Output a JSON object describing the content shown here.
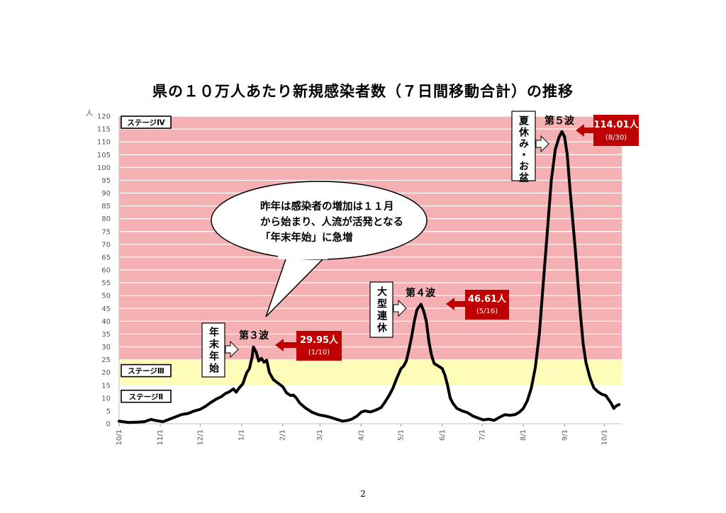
{
  "title": "県の１０万人あたり新規感染者数（７日間移動合計）の推移",
  "page_number": "2",
  "chart_data": {
    "type": "line",
    "title": "県の１０万人あたり新規感染者数（７日間移動合計）の推移",
    "xlabel": "",
    "ylabel": "人",
    "ylim": [
      0,
      120
    ],
    "ytick_step": 5,
    "x_range": [
      "2020-10-01",
      "2021-10-14"
    ],
    "x_ticks": [
      {
        "date": "2020-10-01",
        "label": "10/1"
      },
      {
        "date": "2020-11-01",
        "label": "11/1"
      },
      {
        "date": "2020-12-01",
        "label": "12/1"
      },
      {
        "date": "2021-01-01",
        "label": "1/1"
      },
      {
        "date": "2021-02-01",
        "label": "2/1"
      },
      {
        "date": "2021-03-01",
        "label": "3/1"
      },
      {
        "date": "2021-04-01",
        "label": "4/1"
      },
      {
        "date": "2021-05-01",
        "label": "5/1"
      },
      {
        "date": "2021-06-01",
        "label": "6/1"
      },
      {
        "date": "2021-07-01",
        "label": "7/1"
      },
      {
        "date": "2021-08-01",
        "label": "8/1"
      },
      {
        "date": "2021-09-01",
        "label": "9/1"
      },
      {
        "date": "2021-10-01",
        "label": "10/1"
      }
    ],
    "bands": [
      {
        "label": "ステージⅣ",
        "from": 25,
        "to": 120,
        "color": "#f4b0b2"
      },
      {
        "label": "ステージⅢ",
        "from": 15,
        "to": 25,
        "color": "#fefcb6"
      },
      {
        "label": "ステージⅡ",
        "from": 0,
        "to": 15,
        "color": "#ffffff"
      }
    ],
    "series": [
      {
        "color": "#000000",
        "points": [
          [
            "2020-10-01",
            1.0
          ],
          [
            "2020-10-08",
            0.5
          ],
          [
            "2020-10-15",
            0.6
          ],
          [
            "2020-10-20",
            0.8
          ],
          [
            "2020-10-25",
            1.7
          ],
          [
            "2020-10-29",
            1.2
          ],
          [
            "2020-11-03",
            0.8
          ],
          [
            "2020-11-07",
            1.6
          ],
          [
            "2020-11-12",
            2.6
          ],
          [
            "2020-11-17",
            3.6
          ],
          [
            "2020-11-22",
            4.0
          ],
          [
            "2020-11-26",
            4.9
          ],
          [
            "2020-12-01",
            5.6
          ],
          [
            "2020-12-05",
            6.8
          ],
          [
            "2020-12-09",
            8.3
          ],
          [
            "2020-12-13",
            9.6
          ],
          [
            "2020-12-17",
            10.6
          ],
          [
            "2020-12-20",
            11.8
          ],
          [
            "2020-12-23",
            12.5
          ],
          [
            "2020-12-26",
            13.6
          ],
          [
            "2020-12-28",
            12.3
          ],
          [
            "2020-12-30",
            13.8
          ],
          [
            "2021-01-02",
            15.5
          ],
          [
            "2021-01-05",
            20.0
          ],
          [
            "2021-01-07",
            21.5
          ],
          [
            "2021-01-09",
            26.0
          ],
          [
            "2021-01-10",
            29.95
          ],
          [
            "2021-01-12",
            28.0
          ],
          [
            "2021-01-14",
            24.5
          ],
          [
            "2021-01-16",
            25.5
          ],
          [
            "2021-01-18",
            24.0
          ],
          [
            "2021-01-20",
            24.8
          ],
          [
            "2021-01-22",
            20.0
          ],
          [
            "2021-01-25",
            17.2
          ],
          [
            "2021-01-28",
            16.0
          ],
          [
            "2021-02-01",
            14.5
          ],
          [
            "2021-02-04",
            12.0
          ],
          [
            "2021-02-07",
            11.0
          ],
          [
            "2021-02-09",
            11.2
          ],
          [
            "2021-02-11",
            10.2
          ],
          [
            "2021-02-14",
            8.0
          ],
          [
            "2021-02-18",
            6.2
          ],
          [
            "2021-02-23",
            4.5
          ],
          [
            "2021-02-28",
            3.5
          ],
          [
            "2021-03-05",
            3.0
          ],
          [
            "2021-03-09",
            2.5
          ],
          [
            "2021-03-12",
            2.0
          ],
          [
            "2021-03-15",
            1.5
          ],
          [
            "2021-03-18",
            1.0
          ],
          [
            "2021-03-22",
            1.3
          ],
          [
            "2021-03-25",
            1.8
          ],
          [
            "2021-03-29",
            3.0
          ],
          [
            "2021-04-01",
            4.5
          ],
          [
            "2021-04-04",
            5.0
          ],
          [
            "2021-04-08",
            4.6
          ],
          [
            "2021-04-12",
            5.3
          ],
          [
            "2021-04-16",
            6.3
          ],
          [
            "2021-04-19",
            8.5
          ],
          [
            "2021-04-22",
            11.0
          ],
          [
            "2021-04-25",
            14.0
          ],
          [
            "2021-04-28",
            18.0
          ],
          [
            "2021-05-01",
            21.5
          ],
          [
            "2021-05-03",
            22.5
          ],
          [
            "2021-05-05",
            24.5
          ],
          [
            "2021-05-07",
            29.0
          ],
          [
            "2021-05-09",
            34.0
          ],
          [
            "2021-05-11",
            40.0
          ],
          [
            "2021-05-13",
            44.5
          ],
          [
            "2021-05-16",
            46.61
          ],
          [
            "2021-05-18",
            44.0
          ],
          [
            "2021-05-20",
            40.0
          ],
          [
            "2021-05-22",
            32.0
          ],
          [
            "2021-05-24",
            26.5
          ],
          [
            "2021-05-26",
            23.5
          ],
          [
            "2021-05-29",
            22.5
          ],
          [
            "2021-06-01",
            21.5
          ],
          [
            "2021-06-03",
            19.0
          ],
          [
            "2021-06-05",
            15.0
          ],
          [
            "2021-06-07",
            10.0
          ],
          [
            "2021-06-09",
            8.0
          ],
          [
            "2021-06-12",
            6.0
          ],
          [
            "2021-06-16",
            5.0
          ],
          [
            "2021-06-20",
            4.3
          ],
          [
            "2021-06-24",
            3.0
          ],
          [
            "2021-06-28",
            2.2
          ],
          [
            "2021-07-02",
            1.5
          ],
          [
            "2021-07-06",
            1.8
          ],
          [
            "2021-07-10",
            1.3
          ],
          [
            "2021-07-14",
            2.5
          ],
          [
            "2021-07-18",
            3.5
          ],
          [
            "2021-07-22",
            3.3
          ],
          [
            "2021-07-26",
            3.6
          ],
          [
            "2021-07-29",
            4.5
          ],
          [
            "2021-08-01",
            6.0
          ],
          [
            "2021-08-04",
            9.0
          ],
          [
            "2021-08-07",
            14.0
          ],
          [
            "2021-08-10",
            22.0
          ],
          [
            "2021-08-13",
            35.0
          ],
          [
            "2021-08-16",
            55.0
          ],
          [
            "2021-08-19",
            75.0
          ],
          [
            "2021-08-22",
            95.0
          ],
          [
            "2021-08-25",
            107.0
          ],
          [
            "2021-08-28",
            112.0
          ],
          [
            "2021-08-30",
            114.01
          ],
          [
            "2021-09-01",
            112.0
          ],
          [
            "2021-09-03",
            105.0
          ],
          [
            "2021-09-05",
            92.0
          ],
          [
            "2021-09-07",
            80.0
          ],
          [
            "2021-09-09",
            68.0
          ],
          [
            "2021-09-11",
            55.0
          ],
          [
            "2021-09-13",
            42.0
          ],
          [
            "2021-09-15",
            31.0
          ],
          [
            "2021-09-17",
            24.0
          ],
          [
            "2021-09-20",
            18.0
          ],
          [
            "2021-09-23",
            14.0
          ],
          [
            "2021-09-26",
            12.5
          ],
          [
            "2021-09-29",
            11.5
          ],
          [
            "2021-10-02",
            11.0
          ],
          [
            "2021-10-04",
            9.5
          ],
          [
            "2021-10-06",
            8.0
          ],
          [
            "2021-10-08",
            6.0
          ],
          [
            "2021-10-10",
            7.0
          ],
          [
            "2021-10-12",
            7.5
          ]
        ]
      }
    ],
    "peak_callouts": [
      {
        "wave": "第３波",
        "value": "29.95人",
        "date": "(1/10)",
        "note": "年末年始"
      },
      {
        "wave": "第４波",
        "value": "46.61人",
        "date": "(5/16)",
        "note": "大型連休"
      },
      {
        "wave": "第５波",
        "value": "114.01人",
        "date": "(8/30)",
        "note": "夏休み・お盆"
      }
    ],
    "speech_bubble": [
      "昨年は感染者の増加は１１月",
      "から始まり、人流が活発となる",
      "「年末年始」に急増"
    ],
    "colors": {
      "stage4": "#f4b0b2",
      "stage3": "#fefcb6",
      "line": "#000000",
      "callout_fill": "#c00000",
      "callout_text": "#ffffff",
      "arrow": "#c00000"
    }
  }
}
